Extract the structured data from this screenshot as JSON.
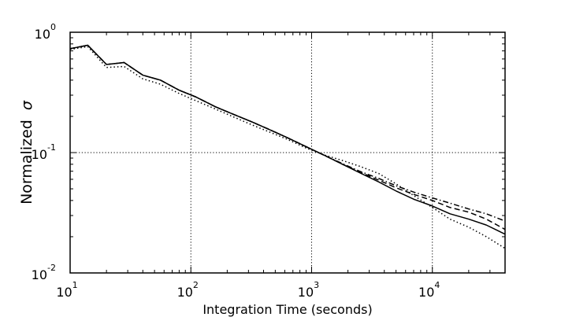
{
  "chart_data": {
    "type": "line",
    "title": "",
    "xlabel": "Integration Time (seconds)",
    "ylabel_text": "Normalized",
    "ylabel_symbol": "σ",
    "x_scale": "log",
    "y_scale": "log",
    "xlim": [
      10,
      40000
    ],
    "ylim": [
      0.01,
      1
    ],
    "grid": "dotted, at major decades",
    "legend": "none",
    "x_ticks": [
      {
        "value": 10,
        "base": "10",
        "exp": "1"
      },
      {
        "value": 100,
        "base": "10",
        "exp": "2"
      },
      {
        "value": 1000,
        "base": "10",
        "exp": "3"
      },
      {
        "value": 10000,
        "base": "10",
        "exp": "4"
      }
    ],
    "y_ticks": [
      {
        "value": 1,
        "base": "10",
        "exp": "0"
      },
      {
        "value": 0.1,
        "base": "10",
        "exp": "-1"
      },
      {
        "value": 0.01,
        "base": "10",
        "exp": "-2"
      }
    ],
    "x": [
      10,
      14,
      20,
      28,
      40,
      56,
      80,
      110,
      160,
      220,
      320,
      450,
      640,
      900,
      1300,
      1800,
      2500,
      3600,
      5000,
      7000,
      10000,
      14000,
      20000,
      28000,
      40000
    ],
    "series": [
      {
        "style": "solid",
        "color": "#000000",
        "values": [
          0.73,
          0.78,
          0.54,
          0.56,
          0.44,
          0.4,
          0.33,
          0.29,
          0.24,
          0.21,
          0.18,
          0.155,
          0.132,
          0.112,
          0.094,
          0.08,
          0.068,
          0.057,
          0.048,
          0.041,
          0.036,
          0.031,
          0.028,
          0.025,
          0.021
        ]
      },
      {
        "style": "dashed",
        "color": "#000000",
        "values": [
          0.73,
          0.78,
          0.54,
          0.56,
          0.44,
          0.4,
          0.33,
          0.29,
          0.24,
          0.21,
          0.18,
          0.155,
          0.132,
          0.112,
          0.094,
          0.08,
          0.069,
          0.059,
          0.051,
          0.045,
          0.04,
          0.035,
          0.032,
          0.028,
          0.023
        ]
      },
      {
        "style": "dashdot",
        "color": "#000000",
        "values": [
          0.73,
          0.78,
          0.54,
          0.56,
          0.44,
          0.4,
          0.33,
          0.29,
          0.24,
          0.21,
          0.18,
          0.155,
          0.132,
          0.112,
          0.094,
          0.081,
          0.07,
          0.061,
          0.053,
          0.047,
          0.042,
          0.038,
          0.034,
          0.031,
          0.027
        ]
      },
      {
        "style": "dotted",
        "color": "#000000",
        "values": [
          0.72,
          0.76,
          0.51,
          0.52,
          0.41,
          0.37,
          0.31,
          0.27,
          0.23,
          0.2,
          0.17,
          0.148,
          0.128,
          0.109,
          0.095,
          0.086,
          0.077,
          0.067,
          0.055,
          0.044,
          0.035,
          0.028,
          0.024,
          0.02,
          0.016
        ]
      }
    ]
  }
}
